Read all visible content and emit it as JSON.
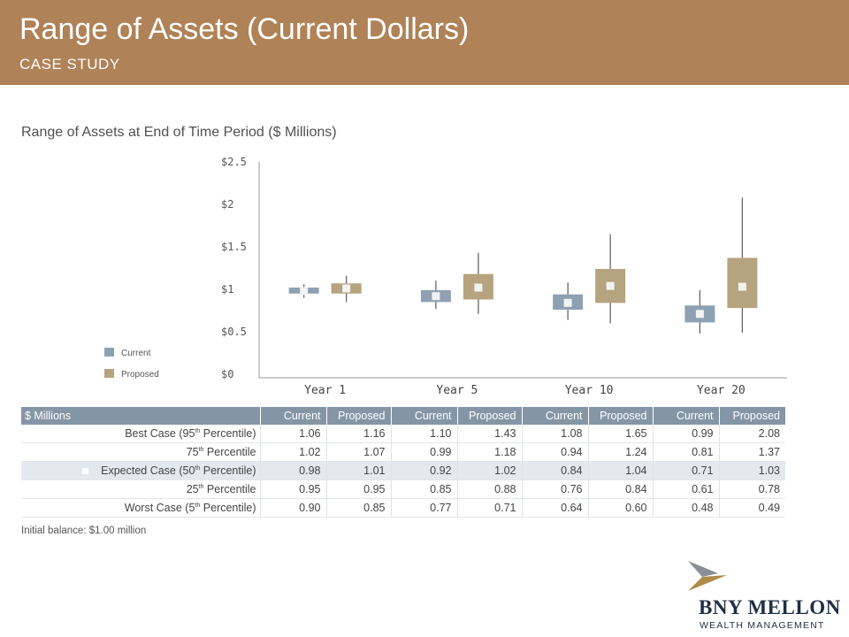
{
  "header": {
    "title": "Range of Assets (Current Dollars)",
    "subtitle": "CASE STUDY"
  },
  "colors": {
    "header_bg": "#b08257",
    "current": "#8ea1b2",
    "proposed": "#b6a37f",
    "table_header": "#8496a6",
    "expected_row": "#e3e9ef"
  },
  "chart_data": {
    "type": "box",
    "title": "Range of Assets at End of Time Period ($ Millions)",
    "categories": [
      "Year 1",
      "Year 5",
      "Year 10",
      "Year 20"
    ],
    "y_ticks": [
      "$0",
      "$0.5",
      "$1",
      "$1.5",
      "$2",
      "$2.5"
    ],
    "ylim": [
      0,
      2.5
    ],
    "legend_position": "left",
    "series": [
      {
        "name": "Current",
        "color": "#8ea1b2",
        "best": [
          1.06,
          1.1,
          1.08,
          0.99
        ],
        "p75": [
          1.02,
          0.99,
          0.94,
          0.81
        ],
        "expected": [
          0.98,
          0.92,
          0.84,
          0.71
        ],
        "p25": [
          0.95,
          0.85,
          0.76,
          0.61
        ],
        "worst": [
          0.9,
          0.77,
          0.64,
          0.48
        ]
      },
      {
        "name": "Proposed",
        "color": "#b6a37f",
        "best": [
          1.16,
          1.43,
          1.65,
          2.08
        ],
        "p75": [
          1.07,
          1.18,
          1.24,
          1.37
        ],
        "expected": [
          1.01,
          1.02,
          1.04,
          1.03
        ],
        "p25": [
          0.95,
          0.88,
          0.84,
          0.78
        ],
        "worst": [
          0.85,
          0.71,
          0.6,
          0.49
        ]
      }
    ]
  },
  "table": {
    "corner": "$ Millions",
    "columns": [
      "Current",
      "Proposed",
      "Current",
      "Proposed",
      "Current",
      "Proposed",
      "Current",
      "Proposed"
    ],
    "rows": [
      {
        "label_pre": "Best Case (95",
        "label_sup": "th",
        "label_post": " Percentile)",
        "values": [
          "1.06",
          "1.16",
          "1.10",
          "1.43",
          "1.08",
          "1.65",
          "0.99",
          "2.08"
        ]
      },
      {
        "label_pre": "75",
        "label_sup": "th",
        "label_post": " Percentile",
        "values": [
          "1.02",
          "1.07",
          "0.99",
          "1.18",
          "0.94",
          "1.24",
          "0.81",
          "1.37"
        ]
      },
      {
        "label_pre": "Expected Case (50",
        "label_sup": "th",
        "label_post": " Percentile)",
        "values": [
          "0.98",
          "1.01",
          "0.92",
          "1.02",
          "0.84",
          "1.04",
          "0.71",
          "1.03"
        ]
      },
      {
        "label_pre": "25",
        "label_sup": "th",
        "label_post": " Percentile",
        "values": [
          "0.95",
          "0.95",
          "0.85",
          "0.88",
          "0.76",
          "0.84",
          "0.61",
          "0.78"
        ]
      },
      {
        "label_pre": "Worst Case (5",
        "label_sup": "th",
        "label_post": " Percentile)",
        "values": [
          "0.90",
          "0.85",
          "0.77",
          "0.71",
          "0.64",
          "0.60",
          "0.48",
          "0.49"
        ]
      }
    ]
  },
  "footnote": "Initial balance: $1.00 million",
  "logo": {
    "name": "BNY MELLON",
    "sub": "WEALTH MANAGEMENT"
  }
}
